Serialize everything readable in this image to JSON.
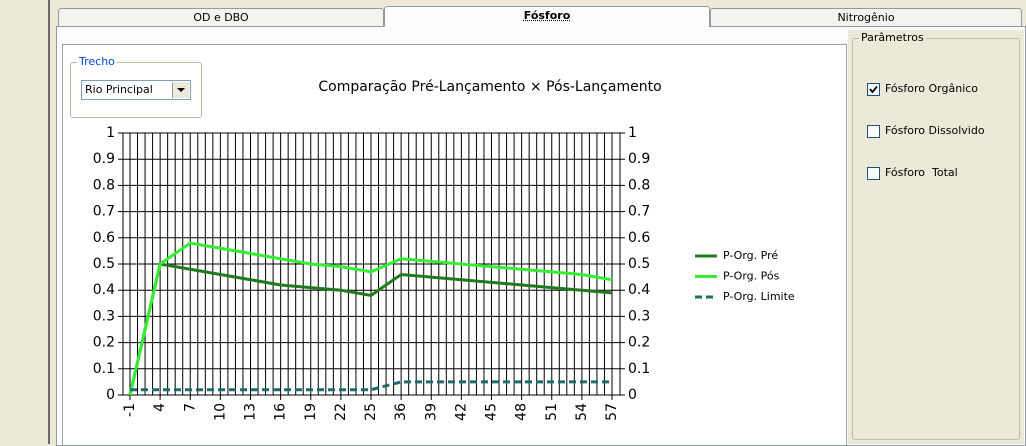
{
  "tabs": [
    "OD e DBO",
    "Fósforo",
    "Nitrogênio"
  ],
  "trecho": {
    "label": "Trecho",
    "value": "Rio Principal"
  },
  "parameters": {
    "label": "Parâmetros",
    "items": [
      {
        "label": "Fósforo Orgânico",
        "checked": true
      },
      {
        "label": "Fósforo Dissolvido",
        "checked": false
      },
      {
        "label": "Fósforo  Total",
        "checked": false
      }
    ]
  },
  "chart_data": {
    "type": "line",
    "title": "Comparação Pré-Lançamento × Pós-Lançamento",
    "categories": [
      "-1",
      "4",
      "7",
      "10",
      "13",
      "16",
      "19",
      "22",
      "25",
      "36",
      "39",
      "42",
      "45",
      "48",
      "51",
      "54",
      "57"
    ],
    "series": [
      {
        "name": "P-Org. Pré",
        "color": "#1e7b1e",
        "style": "solid",
        "values": [
          0,
          0.5,
          0.48,
          0.46,
          0.44,
          0.42,
          0.41,
          0.4,
          0.38,
          0.46,
          0.45,
          0.44,
          0.43,
          0.42,
          0.41,
          0.4,
          0.39
        ]
      },
      {
        "name": "P-Org. Pós",
        "color": "#33ee33",
        "style": "solid",
        "values": [
          0,
          0.5,
          0.58,
          0.56,
          0.54,
          0.52,
          0.5,
          0.49,
          0.47,
          0.52,
          0.51,
          0.5,
          0.49,
          0.48,
          0.47,
          0.46,
          0.44
        ]
      },
      {
        "name": "P-Org. Limite",
        "color": "#1d6b6b",
        "style": "dashed",
        "values": [
          0.02,
          0.02,
          0.02,
          0.02,
          0.02,
          0.02,
          0.02,
          0.02,
          0.02,
          0.05,
          0.05,
          0.05,
          0.05,
          0.05,
          0.05,
          0.05,
          0.05
        ]
      }
    ],
    "ylim": [
      0,
      1
    ],
    "yticks": [
      0,
      0.1,
      0.2,
      0.3,
      0.4,
      0.5,
      0.6,
      0.7,
      0.8,
      0.9,
      1
    ],
    "y2lim": [
      0,
      1
    ],
    "y2ticks": [
      0,
      0.1,
      0.2,
      0.3,
      0.4,
      0.5,
      0.6,
      0.7,
      0.8,
      0.9,
      1
    ],
    "grid": true,
    "legend": "right"
  }
}
